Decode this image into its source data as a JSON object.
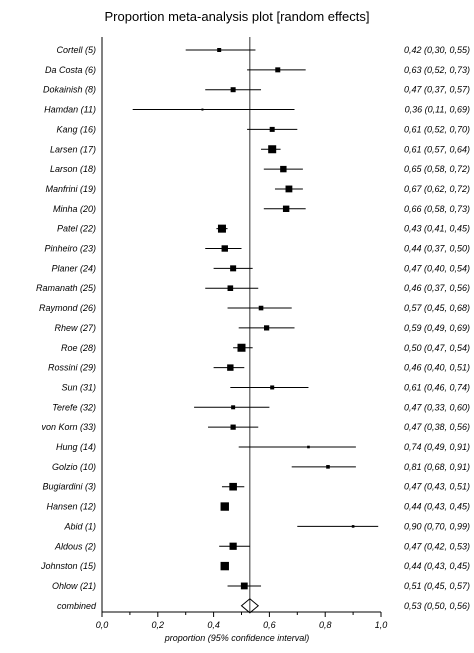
{
  "chart_data": {
    "type": "forest",
    "title": "Proportion meta-analysis plot [random effects]",
    "xlabel": "proportion (95% confidence interval)",
    "xlim": [
      0.0,
      1.0
    ],
    "xticks": [
      "0,0",
      "0,2",
      "0,4",
      "0,6",
      "0,8",
      "1,0"
    ],
    "xtick_values": [
      0.0,
      0.2,
      0.4,
      0.6,
      0.8,
      1.0
    ],
    "reference_line": 0.53,
    "studies": [
      {
        "name": "Cortell (5)",
        "estimate": 0.42,
        "lower": 0.3,
        "upper": 0.55,
        "label": "0,42 (0,30, 0,55)",
        "weight": 2
      },
      {
        "name": "Da Costa (6)",
        "estimate": 0.63,
        "lower": 0.52,
        "upper": 0.73,
        "label": "0,63 (0,52, 0,73)",
        "weight": 2.5
      },
      {
        "name": "Dokainish (8)",
        "estimate": 0.47,
        "lower": 0.37,
        "upper": 0.57,
        "label": "0,47 (0,37, 0,57)",
        "weight": 2.5
      },
      {
        "name": "Hamdan (11)",
        "estimate": 0.36,
        "lower": 0.11,
        "upper": 0.69,
        "label": "0,36 (0,11, 0,69)",
        "weight": 1
      },
      {
        "name": "Kang (16)",
        "estimate": 0.61,
        "lower": 0.52,
        "upper": 0.7,
        "label": "0,61 (0,52, 0,70)",
        "weight": 2.5
      },
      {
        "name": "Larsen (17)",
        "estimate": 0.61,
        "lower": 0.57,
        "upper": 0.64,
        "label": "0,61 (0,57, 0,64)",
        "weight": 4
      },
      {
        "name": "Larson (18)",
        "estimate": 0.65,
        "lower": 0.58,
        "upper": 0.72,
        "label": "0,65 (0,58, 0,72)",
        "weight": 3.2
      },
      {
        "name": "Manfrini (19)",
        "estimate": 0.67,
        "lower": 0.62,
        "upper": 0.72,
        "label": "0,67 (0,62, 0,72)",
        "weight": 3.4
      },
      {
        "name": "Minha (20)",
        "estimate": 0.66,
        "lower": 0.58,
        "upper": 0.73,
        "label": "0,66 (0,58, 0,73)",
        "weight": 3.2
      },
      {
        "name": "Patel (22)",
        "estimate": 0.43,
        "lower": 0.41,
        "upper": 0.45,
        "label": "0,43 (0,41, 0,45)",
        "weight": 4
      },
      {
        "name": "Pinheiro (23)",
        "estimate": 0.44,
        "lower": 0.37,
        "upper": 0.5,
        "label": "0,44 (0,37, 0,50)",
        "weight": 3.2
      },
      {
        "name": "Planer (24)",
        "estimate": 0.47,
        "lower": 0.4,
        "upper": 0.54,
        "label": "0,47 (0,40, 0,54)",
        "weight": 3
      },
      {
        "name": "Ramanath (25)",
        "estimate": 0.46,
        "lower": 0.37,
        "upper": 0.56,
        "label": "0,46 (0,37, 0,56)",
        "weight": 2.8
      },
      {
        "name": "Raymond (26)",
        "estimate": 0.57,
        "lower": 0.45,
        "upper": 0.68,
        "label": "0,57 (0,45, 0,68)",
        "weight": 2.3
      },
      {
        "name": "Rhew (27)",
        "estimate": 0.59,
        "lower": 0.49,
        "upper": 0.69,
        "label": "0,59 (0,49, 0,69)",
        "weight": 2.6
      },
      {
        "name": "Roe (28)",
        "estimate": 0.5,
        "lower": 0.47,
        "upper": 0.54,
        "label": "0,50 (0,47, 0,54)",
        "weight": 4
      },
      {
        "name": "Rossini (29)",
        "estimate": 0.46,
        "lower": 0.4,
        "upper": 0.51,
        "label": "0,46 (0,40, 0,51)",
        "weight": 3.2
      },
      {
        "name": "Sun (31)",
        "estimate": 0.61,
        "lower": 0.46,
        "upper": 0.74,
        "label": "0,61 (0,46, 0,74)",
        "weight": 2
      },
      {
        "name": "Terefe (32)",
        "estimate": 0.47,
        "lower": 0.33,
        "upper": 0.6,
        "label": "0,47 (0,33, 0,60)",
        "weight": 2
      },
      {
        "name": "von Korn (33)",
        "estimate": 0.47,
        "lower": 0.38,
        "upper": 0.56,
        "label": "0,47 (0,38, 0,56)",
        "weight": 2.6
      },
      {
        "name": "Hung (14)",
        "estimate": 0.74,
        "lower": 0.49,
        "upper": 0.91,
        "label": "0,74 (0,49, 0,91)",
        "weight": 1.3
      },
      {
        "name": "Golzio (10)",
        "estimate": 0.81,
        "lower": 0.68,
        "upper": 0.91,
        "label": "0,81 (0,68, 0,91)",
        "weight": 1.8
      },
      {
        "name": "Bugiardini (3)",
        "estimate": 0.47,
        "lower": 0.43,
        "upper": 0.51,
        "label": "0,47 (0,43, 0,51)",
        "weight": 3.8
      },
      {
        "name": "Hansen (12)",
        "estimate": 0.44,
        "lower": 0.43,
        "upper": 0.45,
        "label": "0,44 (0,43, 0,45)",
        "weight": 4.2
      },
      {
        "name": "Abid (1)",
        "estimate": 0.9,
        "lower": 0.7,
        "upper": 0.99,
        "label": "0,90 (0,70, 0,99)",
        "weight": 1.3
      },
      {
        "name": "Aldous (2)",
        "estimate": 0.47,
        "lower": 0.42,
        "upper": 0.53,
        "label": "0,47 (0,42, 0,53)",
        "weight": 3.6
      },
      {
        "name": "Johnston (15)",
        "estimate": 0.44,
        "lower": 0.43,
        "upper": 0.45,
        "label": "0,44 (0,43, 0,45)",
        "weight": 4.2
      },
      {
        "name": "Ohlow (21)",
        "estimate": 0.51,
        "lower": 0.45,
        "upper": 0.57,
        "label": "0,51 (0,45, 0,57)",
        "weight": 3.4
      }
    ],
    "combined": {
      "name": "combined",
      "estimate": 0.53,
      "lower": 0.5,
      "upper": 0.56,
      "label": "0,53 (0,50, 0,56)"
    }
  }
}
